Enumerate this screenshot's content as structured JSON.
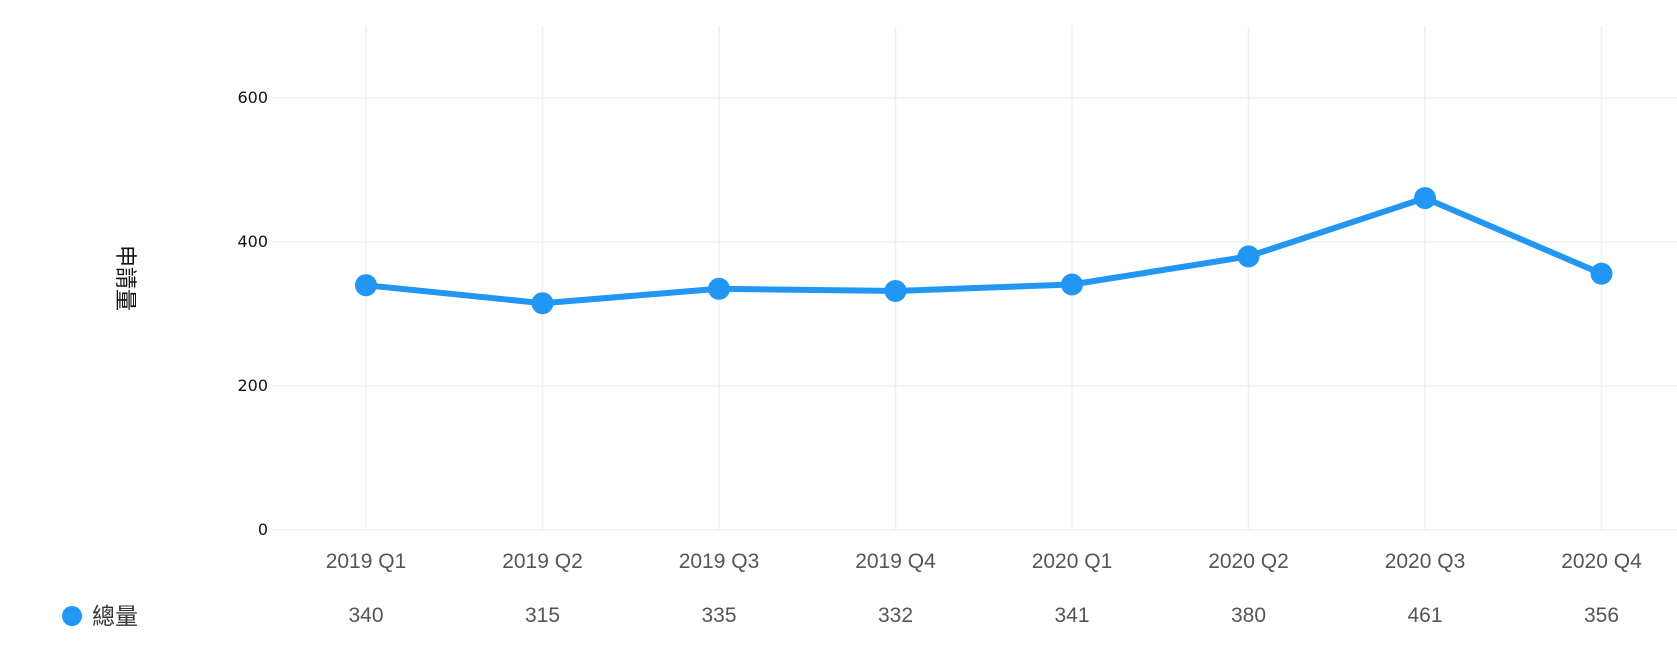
{
  "chart_data": {
    "type": "line",
    "categories": [
      "2019 Q1",
      "2019 Q2",
      "2019 Q3",
      "2019 Q4",
      "2020 Q1",
      "2020 Q2",
      "2020 Q3",
      "2020 Q4"
    ],
    "series": [
      {
        "name": "總量",
        "color": "#2196F3",
        "values": [
          340,
          315,
          335,
          332,
          341,
          380,
          461,
          356
        ]
      }
    ],
    "xlabel": "",
    "ylabel": "申請量",
    "ylim": [
      0,
      700
    ],
    "yticks": [
      0,
      200,
      400,
      600
    ],
    "grid": true,
    "legend_position": "bottom-left",
    "data_table": true
  }
}
